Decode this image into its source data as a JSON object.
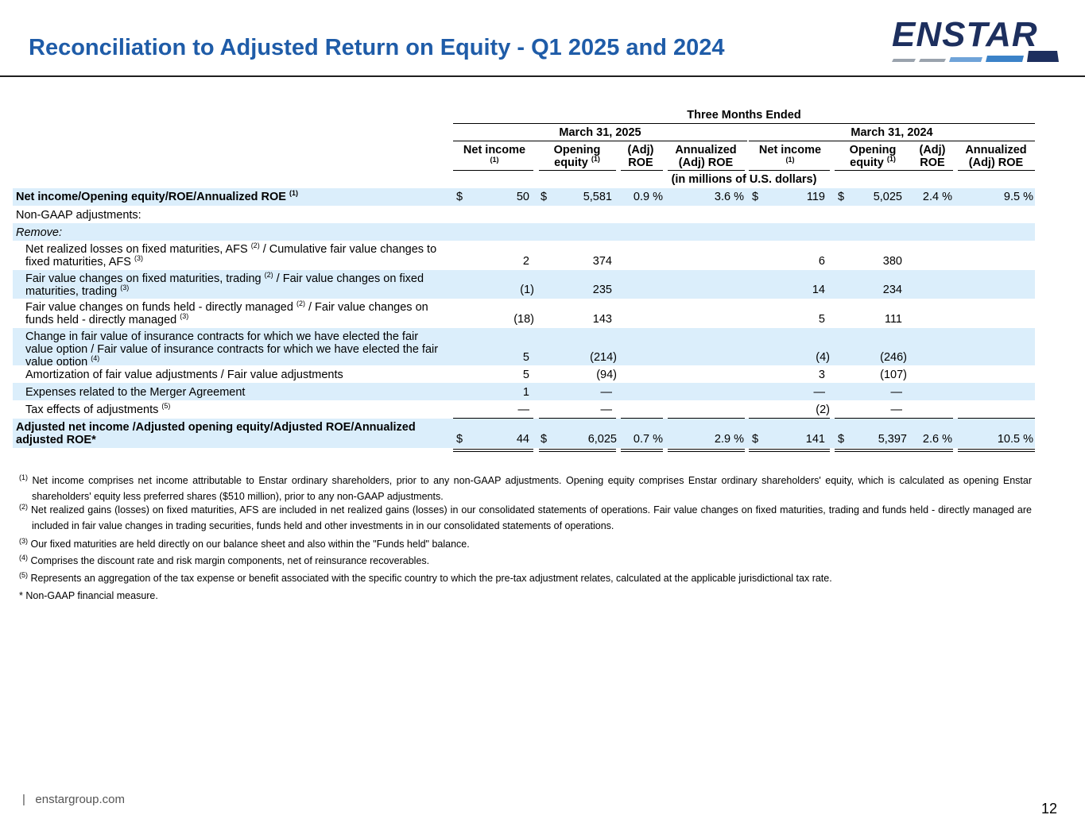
{
  "header": {
    "title": "Reconciliation to Adjusted Return on Equity - Q1 2025 and 2024",
    "logo_text": "ENSTAR"
  },
  "table": {
    "super_header": "Three Months Ended",
    "periods": [
      "March 31, 2025",
      "March 31, 2024"
    ],
    "col_headers": {
      "net_income": "Net income",
      "net_income_sup": "(1)",
      "opening_equity": "Opening equity",
      "opening_equity_sup": "(1)",
      "adj_roe": "(Adj) ROE",
      "annualized": "Annualized (Adj) ROE"
    },
    "units": "(in millions of U.S. dollars)",
    "currency": "$",
    "rows": {
      "net_income": {
        "label": "Net income/Opening equity/ROE/Annualized ROE",
        "sup": "(1)",
        "v": [
          "50",
          "5,581",
          "0.9 %",
          "3.6 %",
          "119",
          "5,025",
          "2.4 %",
          "9.5 %"
        ]
      },
      "non_gaap": {
        "label": "Non-GAAP adjustments:"
      },
      "remove": {
        "label": "Remove:"
      },
      "realized": {
        "label_a": "Net realized losses on fixed maturities, AFS",
        "sup_a": "(2)",
        "label_b": "/ Cumulative fair value changes to fixed maturities, AFS",
        "sup_b": "(3)",
        "v": [
          "2",
          "374",
          "6",
          "380"
        ]
      },
      "fv_trading": {
        "label_a": "Fair value changes on fixed maturities, trading",
        "sup_a": "(2)",
        "label_b": "/ Fair value changes on fixed maturities, trading",
        "sup_b": "(3)",
        "v": [
          "(1)",
          "235",
          "14",
          "234"
        ]
      },
      "fv_funds": {
        "label_a": "Fair value changes  on funds held - directly managed",
        "sup_a": "(2)",
        "label_b": "/ Fair value changes on funds held - directly managed",
        "sup_b": "(3)",
        "v": [
          "(18)",
          "143",
          "5",
          "111"
        ]
      },
      "insurance": {
        "label": "Change in fair value of insurance contracts for which we have elected the fair value option / Fair value of insurance contracts for which we have elected the fair value option",
        "sup": "(4)",
        "v": [
          "5",
          "(214)",
          "(4)",
          "(246)"
        ]
      },
      "amortization": {
        "label": "Amortization of fair value adjustments / Fair value adjustments",
        "v": [
          "5",
          "(94)",
          "3",
          "(107)"
        ]
      },
      "merger": {
        "label": "Expenses related to the Merger Agreement",
        "v": [
          "1",
          "—",
          "—",
          "—"
        ]
      },
      "tax": {
        "label": "Tax effects of adjustments",
        "sup": "(5)",
        "v": [
          "—",
          "—",
          "(2)",
          "—"
        ]
      },
      "adjusted": {
        "label": "Adjusted net income /Adjusted opening equity/Adjusted ROE/Annualized adjusted ROE*",
        "v": [
          "44",
          "6,025",
          "0.7 %",
          "2.9 %",
          "141",
          "5,397",
          "2.6 %",
          "10.5 %"
        ]
      }
    }
  },
  "footnotes": {
    "f1_sup": "(1)",
    "f1": "Net income comprises net income attributable to Enstar ordinary shareholders, prior to any non-GAAP adjustments. Opening equity comprises Enstar ordinary shareholders' equity, which is calculated as opening Enstar shareholders' equity less preferred shares ($510 million), prior to any non-GAAP adjustments.",
    "f2_sup": "(2)",
    "f2": "Net realized gains (losses) on fixed maturities, AFS are included in net realized gains (losses) in our consolidated statements of operations. Fair value changes on fixed maturities, trading and funds held - directly managed are included in fair value changes in trading securities, funds held and other investments in in our consolidated statements of operations.",
    "f3_sup": "(3)",
    "f3": "Our fixed maturities are held directly on our balance sheet and also within the \"Funds held\" balance.",
    "f4_sup": "(4)",
    "f4": "Comprises the discount rate and risk margin components, net of reinsurance recoverables.",
    "f5_sup": "(5)",
    "f5": "Represents an aggregation of the tax expense or benefit associated with the specific country to which the pre-tax adjustment relates, calculated at the applicable jurisdictional tax rate.",
    "nongaap": "* Non-GAAP financial measure."
  },
  "footer": {
    "site": "enstargroup.com",
    "separator": "|",
    "page": "12"
  }
}
